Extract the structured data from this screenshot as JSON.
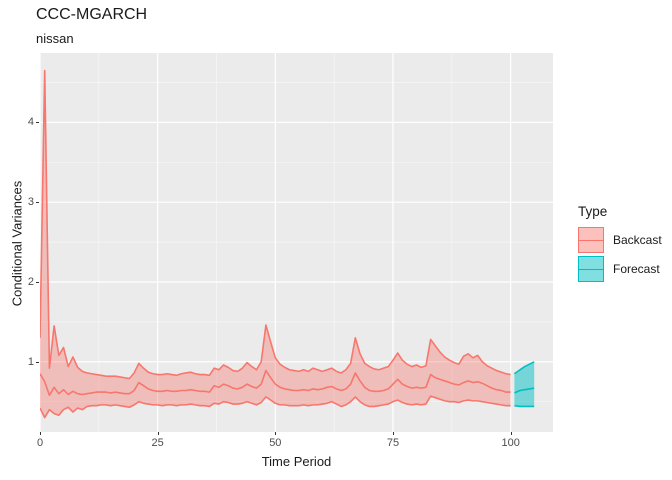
{
  "header": {
    "title": "CCC-MGARCH",
    "subtitle": "nissan"
  },
  "chart_data": {
    "type": "area",
    "title": "CCC-MGARCH",
    "subtitle": "nissan",
    "xlabel": "Time Period",
    "ylabel": "Conditional Variances",
    "xlim": [
      0,
      109
    ],
    "ylim": [
      0.12,
      4.87
    ],
    "x_ticks": [
      0,
      25,
      50,
      75,
      100
    ],
    "x_tick_labels": [
      "0",
      "25",
      "50",
      "75",
      "100"
    ],
    "y_ticks": [
      1,
      2,
      3,
      4
    ],
    "y_tick_labels": [
      "1",
      "2",
      "3",
      "4"
    ],
    "x_minor_breaks": [
      12.5,
      37.5,
      62.5,
      87.5
    ],
    "y_minor_breaks": [
      0.5,
      1.5,
      2.5,
      3.5,
      4.5
    ],
    "grid": true,
    "panel_background": "#EBEBEB",
    "grid_major_color": "#FFFFFF",
    "grid_minor_color": "rgba(255,255,255,0.6)",
    "legend": {
      "title": "Type",
      "position": "right",
      "entries": [
        {
          "label": "Backcast",
          "color": "#F8766D",
          "fill": "rgba(248,118,109,0.45)"
        },
        {
          "label": "Forecast",
          "color": "#00BFC4",
          "fill": "rgba(0,191,196,0.5)"
        }
      ]
    },
    "series": [
      {
        "name": "Backcast",
        "kind": "ribbon-with-lines",
        "color": "#F8766D",
        "fill": "rgba(248,118,109,0.38)",
        "points_format": [
          "t",
          "lower",
          "mid",
          "upper"
        ],
        "points": [
          [
            0,
            0.42,
            0.85,
            1.3
          ],
          [
            1,
            0.3,
            0.75,
            4.65
          ],
          [
            2,
            0.4,
            0.58,
            0.92
          ],
          [
            3,
            0.35,
            0.68,
            1.45
          ],
          [
            4,
            0.33,
            0.6,
            1.08
          ],
          [
            5,
            0.4,
            0.65,
            1.18
          ],
          [
            6,
            0.43,
            0.59,
            0.94
          ],
          [
            7,
            0.37,
            0.63,
            1.06
          ],
          [
            8,
            0.42,
            0.6,
            0.93
          ],
          [
            9,
            0.4,
            0.59,
            0.88
          ],
          [
            10,
            0.44,
            0.6,
            0.86
          ],
          [
            11,
            0.45,
            0.61,
            0.85
          ],
          [
            12,
            0.45,
            0.62,
            0.84
          ],
          [
            13,
            0.46,
            0.62,
            0.83
          ],
          [
            14,
            0.46,
            0.62,
            0.82
          ],
          [
            15,
            0.45,
            0.61,
            0.82
          ],
          [
            16,
            0.46,
            0.62,
            0.82
          ],
          [
            17,
            0.45,
            0.61,
            0.81
          ],
          [
            18,
            0.44,
            0.6,
            0.8
          ],
          [
            19,
            0.43,
            0.6,
            0.79
          ],
          [
            20,
            0.46,
            0.64,
            0.86
          ],
          [
            21,
            0.5,
            0.74,
            0.98
          ],
          [
            22,
            0.48,
            0.7,
            0.92
          ],
          [
            23,
            0.47,
            0.66,
            0.87
          ],
          [
            24,
            0.46,
            0.64,
            0.85
          ],
          [
            25,
            0.46,
            0.63,
            0.84
          ],
          [
            26,
            0.45,
            0.63,
            0.84
          ],
          [
            27,
            0.46,
            0.64,
            0.85
          ],
          [
            28,
            0.46,
            0.63,
            0.84
          ],
          [
            29,
            0.45,
            0.63,
            0.83
          ],
          [
            30,
            0.46,
            0.64,
            0.85
          ],
          [
            31,
            0.46,
            0.64,
            0.86
          ],
          [
            32,
            0.47,
            0.65,
            0.87
          ],
          [
            33,
            0.46,
            0.64,
            0.85
          ],
          [
            34,
            0.45,
            0.63,
            0.84
          ],
          [
            35,
            0.45,
            0.63,
            0.84
          ],
          [
            36,
            0.44,
            0.62,
            0.83
          ],
          [
            37,
            0.48,
            0.7,
            0.92
          ],
          [
            38,
            0.47,
            0.68,
            0.9
          ],
          [
            39,
            0.5,
            0.72,
            0.96
          ],
          [
            40,
            0.49,
            0.7,
            0.93
          ],
          [
            41,
            0.47,
            0.67,
            0.89
          ],
          [
            42,
            0.47,
            0.66,
            0.88
          ],
          [
            43,
            0.48,
            0.68,
            0.92
          ],
          [
            44,
            0.5,
            0.72,
            0.99
          ],
          [
            45,
            0.48,
            0.69,
            0.94
          ],
          [
            46,
            0.46,
            0.67,
            0.9
          ],
          [
            47,
            0.49,
            0.72,
            1.0
          ],
          [
            48,
            0.56,
            0.89,
            1.46
          ],
          [
            49,
            0.52,
            0.8,
            1.25
          ],
          [
            50,
            0.48,
            0.72,
            1.05
          ],
          [
            51,
            0.46,
            0.68,
            0.97
          ],
          [
            52,
            0.46,
            0.66,
            0.93
          ],
          [
            53,
            0.45,
            0.65,
            0.9
          ],
          [
            54,
            0.45,
            0.64,
            0.89
          ],
          [
            55,
            0.45,
            0.64,
            0.88
          ],
          [
            56,
            0.46,
            0.65,
            0.9
          ],
          [
            57,
            0.45,
            0.64,
            0.88
          ],
          [
            58,
            0.46,
            0.66,
            0.92
          ],
          [
            59,
            0.46,
            0.65,
            0.9
          ],
          [
            60,
            0.47,
            0.66,
            0.88
          ],
          [
            61,
            0.48,
            0.68,
            0.9
          ],
          [
            62,
            0.5,
            0.69,
            0.92
          ],
          [
            63,
            0.47,
            0.66,
            0.88
          ],
          [
            64,
            0.44,
            0.64,
            0.86
          ],
          [
            65,
            0.46,
            0.66,
            0.9
          ],
          [
            66,
            0.5,
            0.72,
            0.98
          ],
          [
            67,
            0.56,
            0.86,
            1.3
          ],
          [
            68,
            0.5,
            0.76,
            1.1
          ],
          [
            69,
            0.46,
            0.68,
            0.98
          ],
          [
            70,
            0.44,
            0.64,
            0.94
          ],
          [
            71,
            0.44,
            0.63,
            0.91
          ],
          [
            72,
            0.45,
            0.63,
            0.9
          ],
          [
            73,
            0.46,
            0.64,
            0.92
          ],
          [
            74,
            0.47,
            0.66,
            0.94
          ],
          [
            75,
            0.5,
            0.72,
            1.02
          ],
          [
            76,
            0.52,
            0.78,
            1.11
          ],
          [
            77,
            0.49,
            0.72,
            1.02
          ],
          [
            78,
            0.47,
            0.69,
            0.97
          ],
          [
            79,
            0.46,
            0.67,
            0.94
          ],
          [
            80,
            0.47,
            0.68,
            0.96
          ],
          [
            81,
            0.46,
            0.67,
            0.93
          ],
          [
            82,
            0.47,
            0.68,
            0.95
          ],
          [
            83,
            0.57,
            0.84,
            1.28
          ],
          [
            84,
            0.55,
            0.8,
            1.2
          ],
          [
            85,
            0.53,
            0.78,
            1.12
          ],
          [
            86,
            0.51,
            0.76,
            1.06
          ],
          [
            87,
            0.5,
            0.74,
            1.02
          ],
          [
            88,
            0.5,
            0.72,
            0.99
          ],
          [
            89,
            0.49,
            0.71,
            0.97
          ],
          [
            90,
            0.51,
            0.74,
            1.07
          ],
          [
            91,
            0.52,
            0.76,
            1.1
          ],
          [
            92,
            0.51,
            0.74,
            1.05
          ],
          [
            93,
            0.51,
            0.75,
            1.08
          ],
          [
            94,
            0.5,
            0.73,
            1.0
          ],
          [
            95,
            0.49,
            0.7,
            0.95
          ],
          [
            96,
            0.48,
            0.67,
            0.92
          ],
          [
            97,
            0.47,
            0.65,
            0.89
          ],
          [
            98,
            0.46,
            0.64,
            0.87
          ],
          [
            99,
            0.45,
            0.62,
            0.85
          ],
          [
            100,
            0.45,
            0.62,
            0.84
          ]
        ]
      },
      {
        "name": "Forecast",
        "kind": "ribbon-with-lines",
        "color": "#00BFC4",
        "fill": "rgba(0,191,196,0.5)",
        "points_format": [
          "t",
          "lower",
          "mid",
          "upper"
        ],
        "points": [
          [
            100.8,
            0.45,
            0.61,
            0.85
          ],
          [
            102,
            0.44,
            0.64,
            0.9
          ],
          [
            103,
            0.44,
            0.65,
            0.94
          ],
          [
            104,
            0.44,
            0.66,
            0.97
          ],
          [
            105,
            0.44,
            0.67,
            1.0
          ]
        ]
      }
    ]
  }
}
